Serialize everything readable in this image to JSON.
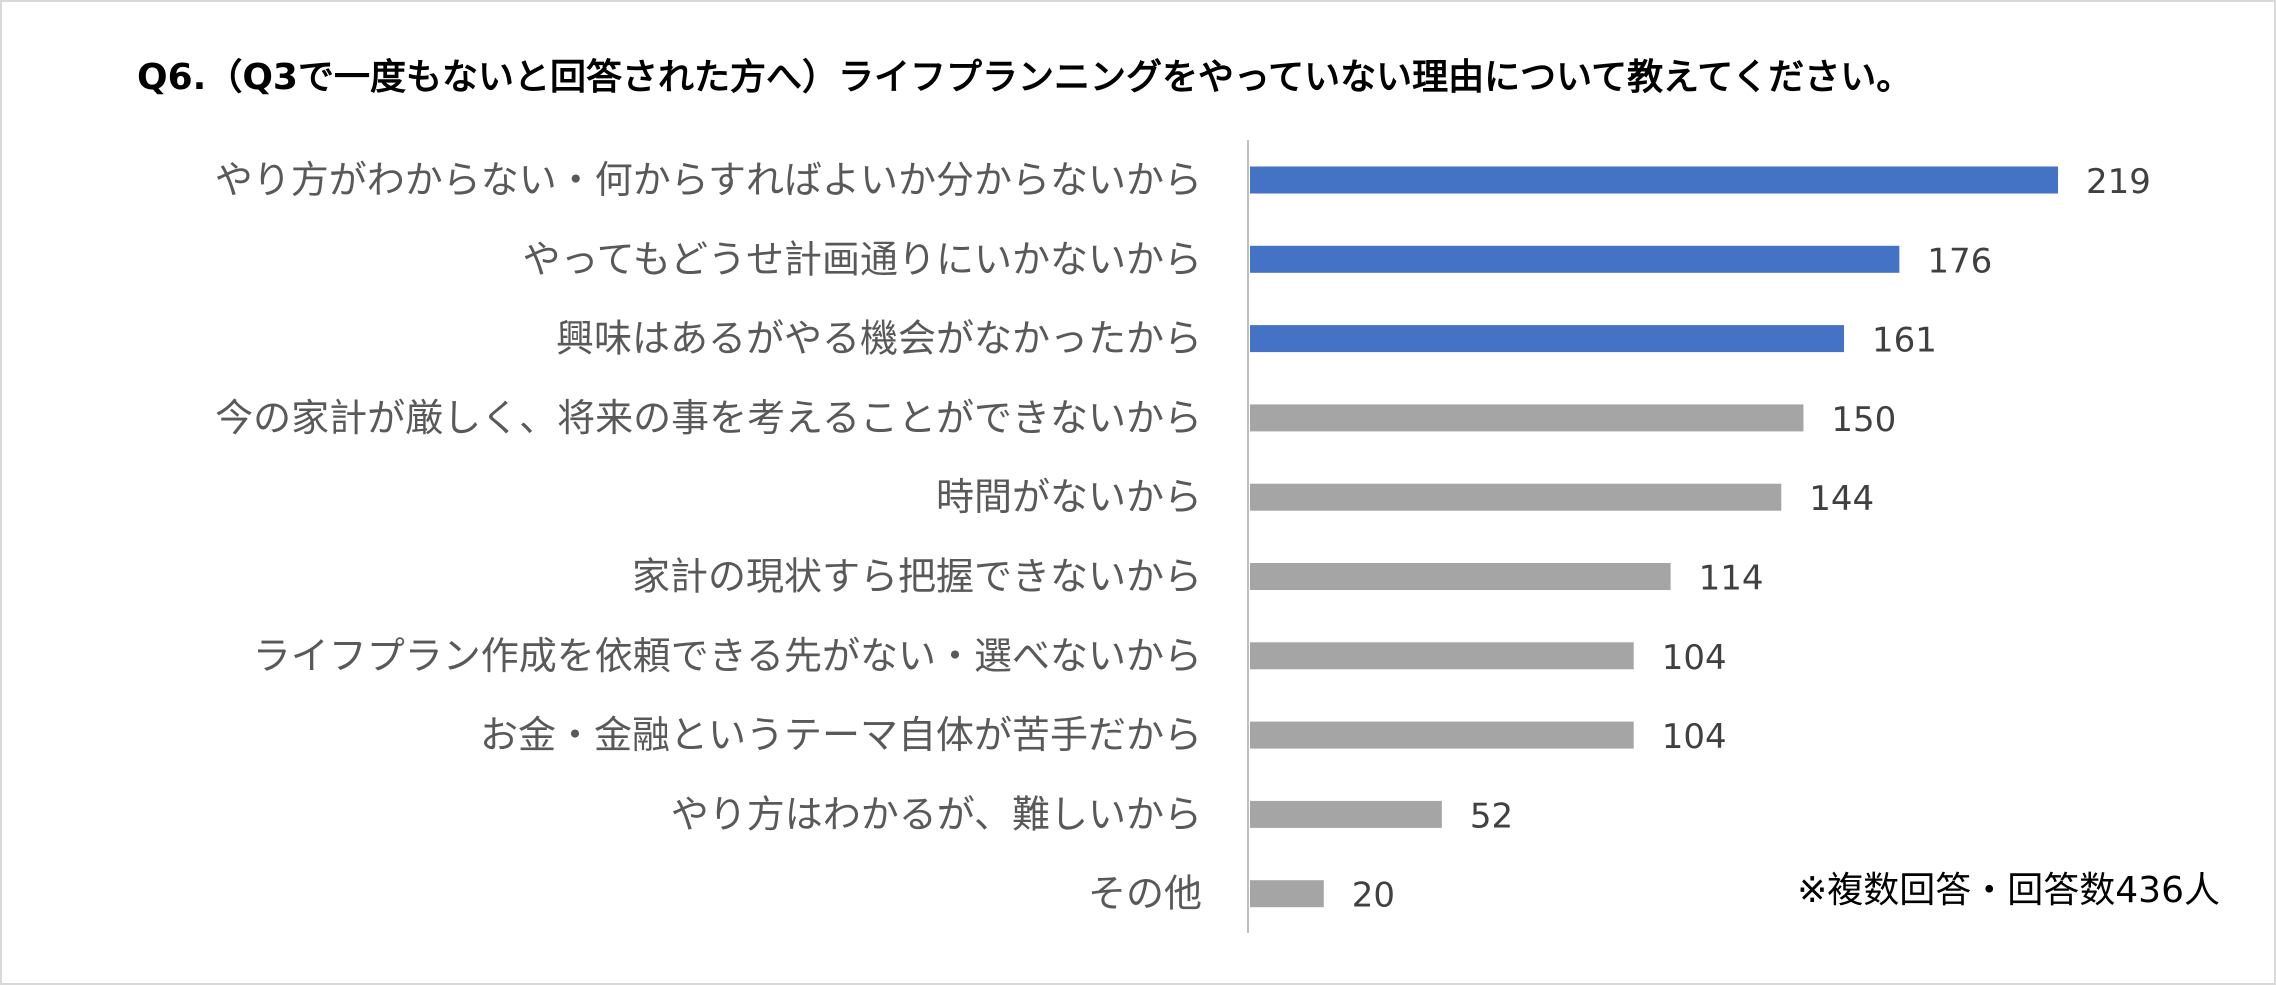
{
  "chart_data": {
    "type": "bar",
    "orientation": "horizontal",
    "title": "Q6.（Q3で一度もないと回答された方へ）ライフプランニングをやっていない理由について教えてください。",
    "categories": [
      "やり方がわからない・何からすればよいか分からないから",
      "やってもどうせ計画通りにいかないから",
      "興味はあるがやる機会がなかったから",
      "今の家計が厳しく、将来の事を考えることができないから",
      "時間がないから",
      "家計の現状すら把握できないから",
      "ライフプラン作成を依頼できる先がない・選べないから",
      "お金・金融というテーマ自体が苦手だから",
      "やり方はわかるが、難しいから",
      "その他"
    ],
    "values": [
      219,
      176,
      161,
      150,
      144,
      114,
      104,
      104,
      52,
      20
    ],
    "highlight_count": 3,
    "colors": {
      "highlight": "#4472c4",
      "default": "#a5a5a5",
      "axis": "#bfbfbf"
    },
    "xlim": [
      0,
      250
    ],
    "grid": false,
    "legend": "none",
    "note": "※複数回答・回答数436人"
  }
}
